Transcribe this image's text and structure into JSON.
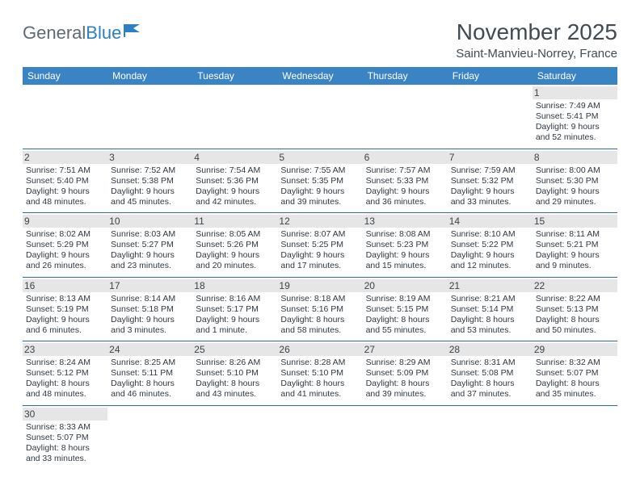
{
  "logo": {
    "part1": "General",
    "part2": "Blue"
  },
  "title": "November 2025",
  "location": "Saint-Manvieu-Norrey, France",
  "colors": {
    "header_bg": "#3b84c4",
    "header_text": "#ffffff",
    "row_divider": "#2f6aa8",
    "daynum_bg": "#e6e6e6",
    "text": "#2f3840",
    "logo_gray": "#5f6a72",
    "logo_blue": "#2f7fc2"
  },
  "weekdays": [
    "Sunday",
    "Monday",
    "Tuesday",
    "Wednesday",
    "Thursday",
    "Friday",
    "Saturday"
  ],
  "weeks": [
    [
      {
        "n": "",
        "sr": "",
        "ss": "",
        "dl": ""
      },
      {
        "n": "",
        "sr": "",
        "ss": "",
        "dl": ""
      },
      {
        "n": "",
        "sr": "",
        "ss": "",
        "dl": ""
      },
      {
        "n": "",
        "sr": "",
        "ss": "",
        "dl": ""
      },
      {
        "n": "",
        "sr": "",
        "ss": "",
        "dl": ""
      },
      {
        "n": "",
        "sr": "",
        "ss": "",
        "dl": ""
      },
      {
        "n": "1",
        "sr": "Sunrise: 7:49 AM",
        "ss": "Sunset: 5:41 PM",
        "dl": "Daylight: 9 hours and 52 minutes."
      }
    ],
    [
      {
        "n": "2",
        "sr": "Sunrise: 7:51 AM",
        "ss": "Sunset: 5:40 PM",
        "dl": "Daylight: 9 hours and 48 minutes."
      },
      {
        "n": "3",
        "sr": "Sunrise: 7:52 AM",
        "ss": "Sunset: 5:38 PM",
        "dl": "Daylight: 9 hours and 45 minutes."
      },
      {
        "n": "4",
        "sr": "Sunrise: 7:54 AM",
        "ss": "Sunset: 5:36 PM",
        "dl": "Daylight: 9 hours and 42 minutes."
      },
      {
        "n": "5",
        "sr": "Sunrise: 7:55 AM",
        "ss": "Sunset: 5:35 PM",
        "dl": "Daylight: 9 hours and 39 minutes."
      },
      {
        "n": "6",
        "sr": "Sunrise: 7:57 AM",
        "ss": "Sunset: 5:33 PM",
        "dl": "Daylight: 9 hours and 36 minutes."
      },
      {
        "n": "7",
        "sr": "Sunrise: 7:59 AM",
        "ss": "Sunset: 5:32 PM",
        "dl": "Daylight: 9 hours and 33 minutes."
      },
      {
        "n": "8",
        "sr": "Sunrise: 8:00 AM",
        "ss": "Sunset: 5:30 PM",
        "dl": "Daylight: 9 hours and 29 minutes."
      }
    ],
    [
      {
        "n": "9",
        "sr": "Sunrise: 8:02 AM",
        "ss": "Sunset: 5:29 PM",
        "dl": "Daylight: 9 hours and 26 minutes."
      },
      {
        "n": "10",
        "sr": "Sunrise: 8:03 AM",
        "ss": "Sunset: 5:27 PM",
        "dl": "Daylight: 9 hours and 23 minutes."
      },
      {
        "n": "11",
        "sr": "Sunrise: 8:05 AM",
        "ss": "Sunset: 5:26 PM",
        "dl": "Daylight: 9 hours and 20 minutes."
      },
      {
        "n": "12",
        "sr": "Sunrise: 8:07 AM",
        "ss": "Sunset: 5:25 PM",
        "dl": "Daylight: 9 hours and 17 minutes."
      },
      {
        "n": "13",
        "sr": "Sunrise: 8:08 AM",
        "ss": "Sunset: 5:23 PM",
        "dl": "Daylight: 9 hours and 15 minutes."
      },
      {
        "n": "14",
        "sr": "Sunrise: 8:10 AM",
        "ss": "Sunset: 5:22 PM",
        "dl": "Daylight: 9 hours and 12 minutes."
      },
      {
        "n": "15",
        "sr": "Sunrise: 8:11 AM",
        "ss": "Sunset: 5:21 PM",
        "dl": "Daylight: 9 hours and 9 minutes."
      }
    ],
    [
      {
        "n": "16",
        "sr": "Sunrise: 8:13 AM",
        "ss": "Sunset: 5:19 PM",
        "dl": "Daylight: 9 hours and 6 minutes."
      },
      {
        "n": "17",
        "sr": "Sunrise: 8:14 AM",
        "ss": "Sunset: 5:18 PM",
        "dl": "Daylight: 9 hours and 3 minutes."
      },
      {
        "n": "18",
        "sr": "Sunrise: 8:16 AM",
        "ss": "Sunset: 5:17 PM",
        "dl": "Daylight: 9 hours and 1 minute."
      },
      {
        "n": "19",
        "sr": "Sunrise: 8:18 AM",
        "ss": "Sunset: 5:16 PM",
        "dl": "Daylight: 8 hours and 58 minutes."
      },
      {
        "n": "20",
        "sr": "Sunrise: 8:19 AM",
        "ss": "Sunset: 5:15 PM",
        "dl": "Daylight: 8 hours and 55 minutes."
      },
      {
        "n": "21",
        "sr": "Sunrise: 8:21 AM",
        "ss": "Sunset: 5:14 PM",
        "dl": "Daylight: 8 hours and 53 minutes."
      },
      {
        "n": "22",
        "sr": "Sunrise: 8:22 AM",
        "ss": "Sunset: 5:13 PM",
        "dl": "Daylight: 8 hours and 50 minutes."
      }
    ],
    [
      {
        "n": "23",
        "sr": "Sunrise: 8:24 AM",
        "ss": "Sunset: 5:12 PM",
        "dl": "Daylight: 8 hours and 48 minutes."
      },
      {
        "n": "24",
        "sr": "Sunrise: 8:25 AM",
        "ss": "Sunset: 5:11 PM",
        "dl": "Daylight: 8 hours and 46 minutes."
      },
      {
        "n": "25",
        "sr": "Sunrise: 8:26 AM",
        "ss": "Sunset: 5:10 PM",
        "dl": "Daylight: 8 hours and 43 minutes."
      },
      {
        "n": "26",
        "sr": "Sunrise: 8:28 AM",
        "ss": "Sunset: 5:10 PM",
        "dl": "Daylight: 8 hours and 41 minutes."
      },
      {
        "n": "27",
        "sr": "Sunrise: 8:29 AM",
        "ss": "Sunset: 5:09 PM",
        "dl": "Daylight: 8 hours and 39 minutes."
      },
      {
        "n": "28",
        "sr": "Sunrise: 8:31 AM",
        "ss": "Sunset: 5:08 PM",
        "dl": "Daylight: 8 hours and 37 minutes."
      },
      {
        "n": "29",
        "sr": "Sunrise: 8:32 AM",
        "ss": "Sunset: 5:07 PM",
        "dl": "Daylight: 8 hours and 35 minutes."
      }
    ],
    [
      {
        "n": "30",
        "sr": "Sunrise: 8:33 AM",
        "ss": "Sunset: 5:07 PM",
        "dl": "Daylight: 8 hours and 33 minutes."
      },
      {
        "n": "",
        "sr": "",
        "ss": "",
        "dl": ""
      },
      {
        "n": "",
        "sr": "",
        "ss": "",
        "dl": ""
      },
      {
        "n": "",
        "sr": "",
        "ss": "",
        "dl": ""
      },
      {
        "n": "",
        "sr": "",
        "ss": "",
        "dl": ""
      },
      {
        "n": "",
        "sr": "",
        "ss": "",
        "dl": ""
      },
      {
        "n": "",
        "sr": "",
        "ss": "",
        "dl": ""
      }
    ]
  ]
}
